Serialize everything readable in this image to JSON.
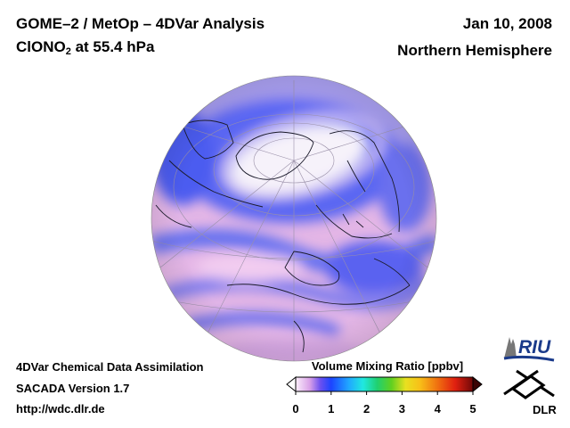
{
  "header": {
    "title_line1": "GOME–2 / MetOp – 4DVar Analysis",
    "species_main": "ClONO",
    "species_sub": "2",
    "species_rest": " at 55.4 hPa",
    "date": "Jan 10, 2008",
    "region": "Northern Hemisphere"
  },
  "footer": {
    "line1": "4DVar Chemical Data Assimilation",
    "line2": "SACADA Version 1.7",
    "line3": "http://wdc.dlr.de"
  },
  "colorbar": {
    "title": "Volume Mixing Ratio [ppbv]",
    "ticks": [
      "0",
      "1",
      "2",
      "3",
      "4",
      "5"
    ],
    "min": 0,
    "max": 5
  },
  "logos": {
    "riu": "RIU",
    "dlr": "DLR"
  },
  "colors": {
    "map_pink": "#e6b8e6",
    "map_blue": "#5060f0",
    "map_white": "#f8f4fa"
  }
}
